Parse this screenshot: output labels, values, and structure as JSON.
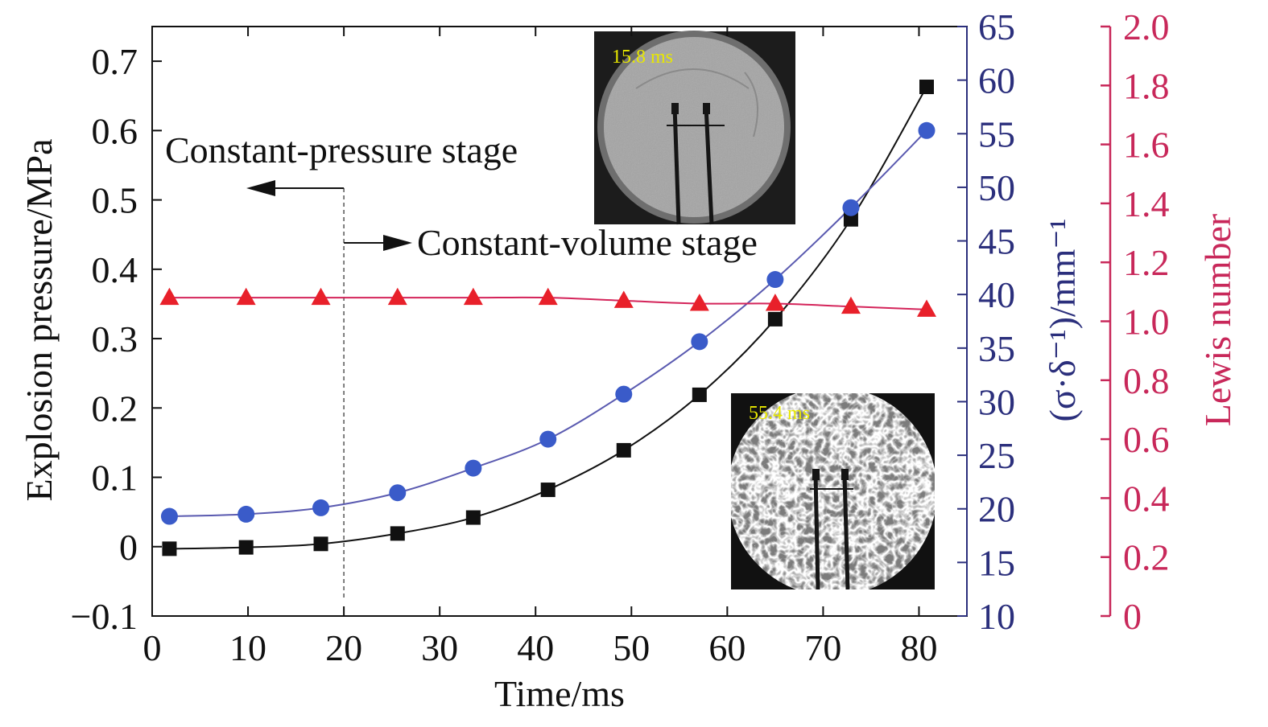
{
  "chart_data": {
    "type": "line",
    "xlabel": "Time/ms",
    "ylabel_left": "Explosion pressure/MPa",
    "ylabel_right1": "(σ·δ⁻¹)/mm⁻¹",
    "ylabel_right2": "Lewis number",
    "xlim": [
      0,
      85
    ],
    "xticks": [
      0,
      10,
      20,
      30,
      40,
      50,
      60,
      70,
      80
    ],
    "ylim_left": [
      -0.1,
      0.75
    ],
    "yticks_left": [
      -0.1,
      0,
      0.1,
      0.2,
      0.3,
      0.4,
      0.5,
      0.6,
      0.7
    ],
    "ytick_labels_left": [
      "−0.1",
      "0",
      "0.1",
      "0.2",
      "0.3",
      "0.4",
      "0.5",
      "0.6",
      "0.7"
    ],
    "ylim_right1": [
      10,
      65
    ],
    "yticks_right1": [
      10,
      15,
      20,
      25,
      30,
      35,
      40,
      45,
      50,
      55,
      60,
      65
    ],
    "ylim_right2": [
      0,
      2.0
    ],
    "yticks_right2": [
      0,
      0.2,
      0.4,
      0.6,
      0.8,
      1.0,
      1.2,
      1.4,
      1.6,
      1.8,
      2.0
    ],
    "ytick_labels_right2": [
      "0",
      "0.2",
      "0.4",
      "0.6",
      "0.8",
      "1.0",
      "1.2",
      "1.4",
      "1.6",
      "1.8",
      "2.0"
    ],
    "x": [
      1.8,
      9.8,
      17.6,
      25.6,
      33.5,
      41.3,
      49.2,
      57.1,
      65.0,
      72.9,
      80.8
    ],
    "series": [
      {
        "axis": "left",
        "marker": "square",
        "color": "#111111",
        "values": [
          -0.003,
          -0.001,
          0.004,
          0.019,
          0.042,
          0.082,
          0.139,
          0.219,
          0.328,
          0.472,
          0.663
        ]
      },
      {
        "axis": "right1",
        "marker": "circle",
        "color": "#3a5bc9",
        "line_color": "#5a5ab0",
        "values": [
          19.3,
          19.5,
          20.1,
          21.5,
          23.8,
          26.5,
          30.7,
          35.6,
          41.4,
          48.1,
          55.3
        ]
      },
      {
        "axis": "right2",
        "marker": "triangle",
        "color": "#e8202a",
        "line_color": "#d4245a",
        "values": [
          1.08,
          1.08,
          1.08,
          1.08,
          1.08,
          1.08,
          1.07,
          1.06,
          1.06,
          1.05,
          1.04
        ]
      }
    ],
    "annotations": {
      "constant_pressure": "Constant-pressure stage",
      "constant_volume": "Constant-volume stage",
      "stage_boundary_x": 20
    },
    "insets": [
      {
        "time_label": "15.8 ms",
        "scene": "smooth-flame"
      },
      {
        "time_label": "55.4 ms",
        "scene": "cellular-flame"
      }
    ],
    "colors": {
      "axis_right1": "#2b2f7c",
      "axis_right2": "#c8285a",
      "text": "#111111",
      "inset_label": "#e8e800"
    }
  }
}
